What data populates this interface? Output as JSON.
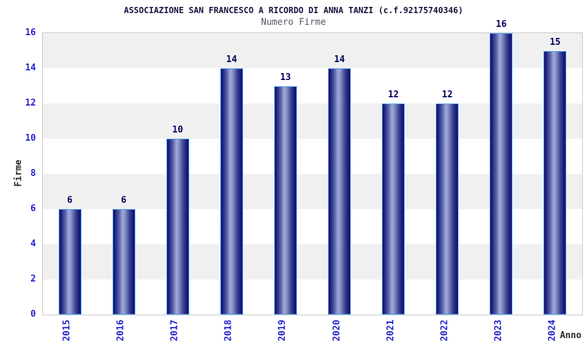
{
  "chart_data": {
    "type": "bar",
    "title": "ASSOCIAZIONE SAN FRANCESCO A RICORDO DI ANNA TANZI (c.f.92175740346)",
    "subtitle": "Numero Firme",
    "xlabel": "Anno",
    "ylabel": "Firme",
    "categories": [
      "2015",
      "2016",
      "2017",
      "2018",
      "2019",
      "2020",
      "2021",
      "2022",
      "2023",
      "2024"
    ],
    "values": [
      6,
      6,
      10,
      14,
      13,
      14,
      12,
      12,
      16,
      15
    ],
    "ylim": [
      0,
      16
    ],
    "yticks": [
      0,
      2,
      4,
      6,
      8,
      10,
      12,
      14,
      16
    ],
    "grid": "alternating-horizontal-bands",
    "legend_position": "none",
    "colors": {
      "bar_dark": "#12126a",
      "bar_light": "#a2abd8",
      "bar_border": "#4da2f0",
      "band_gray": "#f0f0f0",
      "tick_text": "#2323cd",
      "value_label": "#00005e",
      "title_text": "#16163f",
      "subtitle_text": "#565666",
      "axis_label_text": "#2a2a2a",
      "plot_border": "#c9c9c9"
    }
  }
}
